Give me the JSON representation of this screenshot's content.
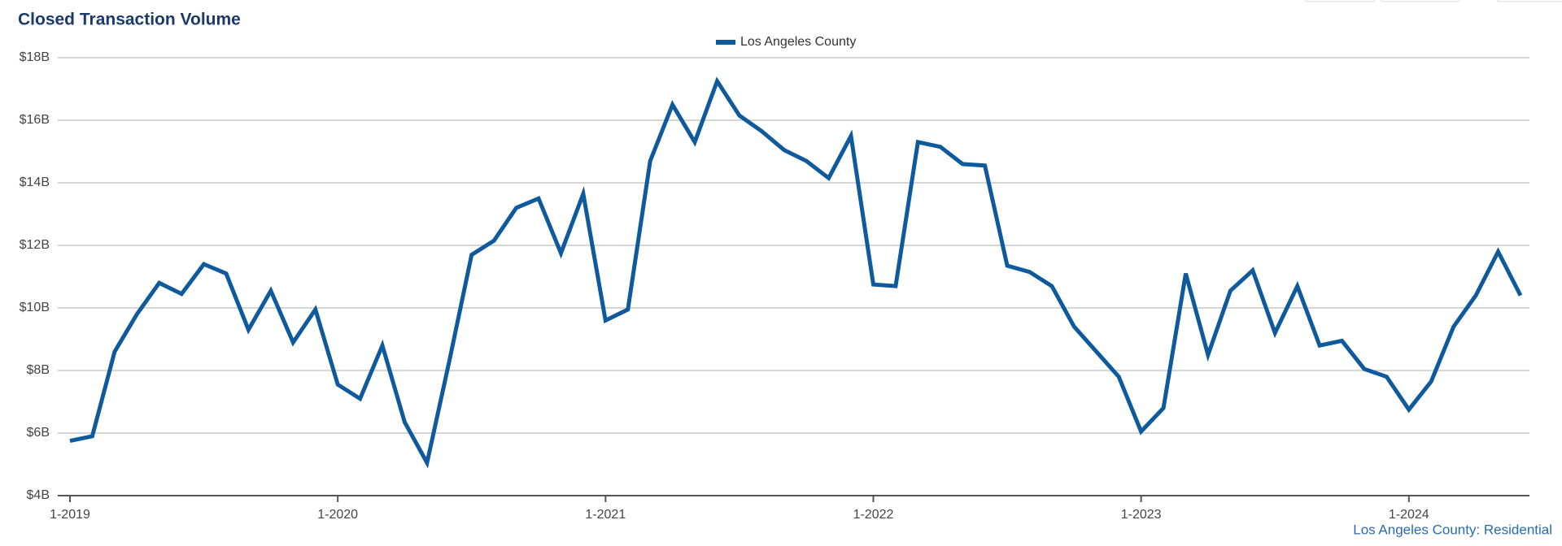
{
  "chart_data": {
    "type": "line",
    "title": "Closed Transaction Volume",
    "note": "Los Angeles County: Residential",
    "categories": [
      "1-2019",
      null,
      null,
      null,
      null,
      null,
      null,
      null,
      null,
      null,
      null,
      null,
      "1-2020",
      null,
      null,
      null,
      null,
      null,
      null,
      null,
      null,
      null,
      null,
      null,
      "1-2021",
      null,
      null,
      null,
      null,
      null,
      null,
      null,
      null,
      null,
      null,
      null,
      "1-2022",
      null,
      null,
      null,
      null,
      null,
      null,
      null,
      null,
      null,
      null,
      null,
      "1-2023",
      null,
      null,
      null,
      null,
      null,
      null,
      null,
      null,
      null,
      null,
      null,
      "1-2024",
      null,
      null,
      null,
      null,
      null
    ],
    "series": [
      {
        "name": "Los Angeles County",
        "color": "#0f5a9c",
        "values": [
          5.75,
          5.9,
          8.6,
          9.8,
          10.8,
          10.45,
          11.4,
          11.1,
          9.3,
          10.55,
          8.9,
          9.95,
          7.55,
          7.1,
          8.8,
          6.35,
          5.05,
          8.3,
          11.7,
          12.15,
          13.2,
          13.5,
          11.75,
          13.65,
          9.6,
          9.95,
          14.7,
          16.5,
          15.3,
          17.25,
          16.15,
          15.65,
          15.05,
          14.7,
          14.15,
          15.5,
          10.75,
          10.7,
          15.3,
          15.15,
          14.6,
          14.55,
          11.35,
          11.15,
          10.7,
          9.4,
          8.6,
          7.8,
          6.05,
          6.8,
          11.1,
          8.5,
          10.55,
          11.2,
          9.2,
          10.7,
          8.8,
          8.95,
          8.05,
          7.8,
          6.75,
          7.65,
          9.4,
          10.4,
          11.8,
          10.4
        ]
      }
    ],
    "ylim": [
      4,
      18
    ],
    "yticks": [
      {
        "value": 4,
        "label": "$4B"
      },
      {
        "value": 6,
        "label": "$6B"
      },
      {
        "value": 8,
        "label": "$8B"
      },
      {
        "value": 10,
        "label": "$10B"
      },
      {
        "value": 12,
        "label": "$12B"
      },
      {
        "value": 14,
        "label": "$14B"
      },
      {
        "value": 16,
        "label": "$16B"
      },
      {
        "value": 18,
        "label": "$18B"
      }
    ],
    "grid": true,
    "legend": "top"
  }
}
